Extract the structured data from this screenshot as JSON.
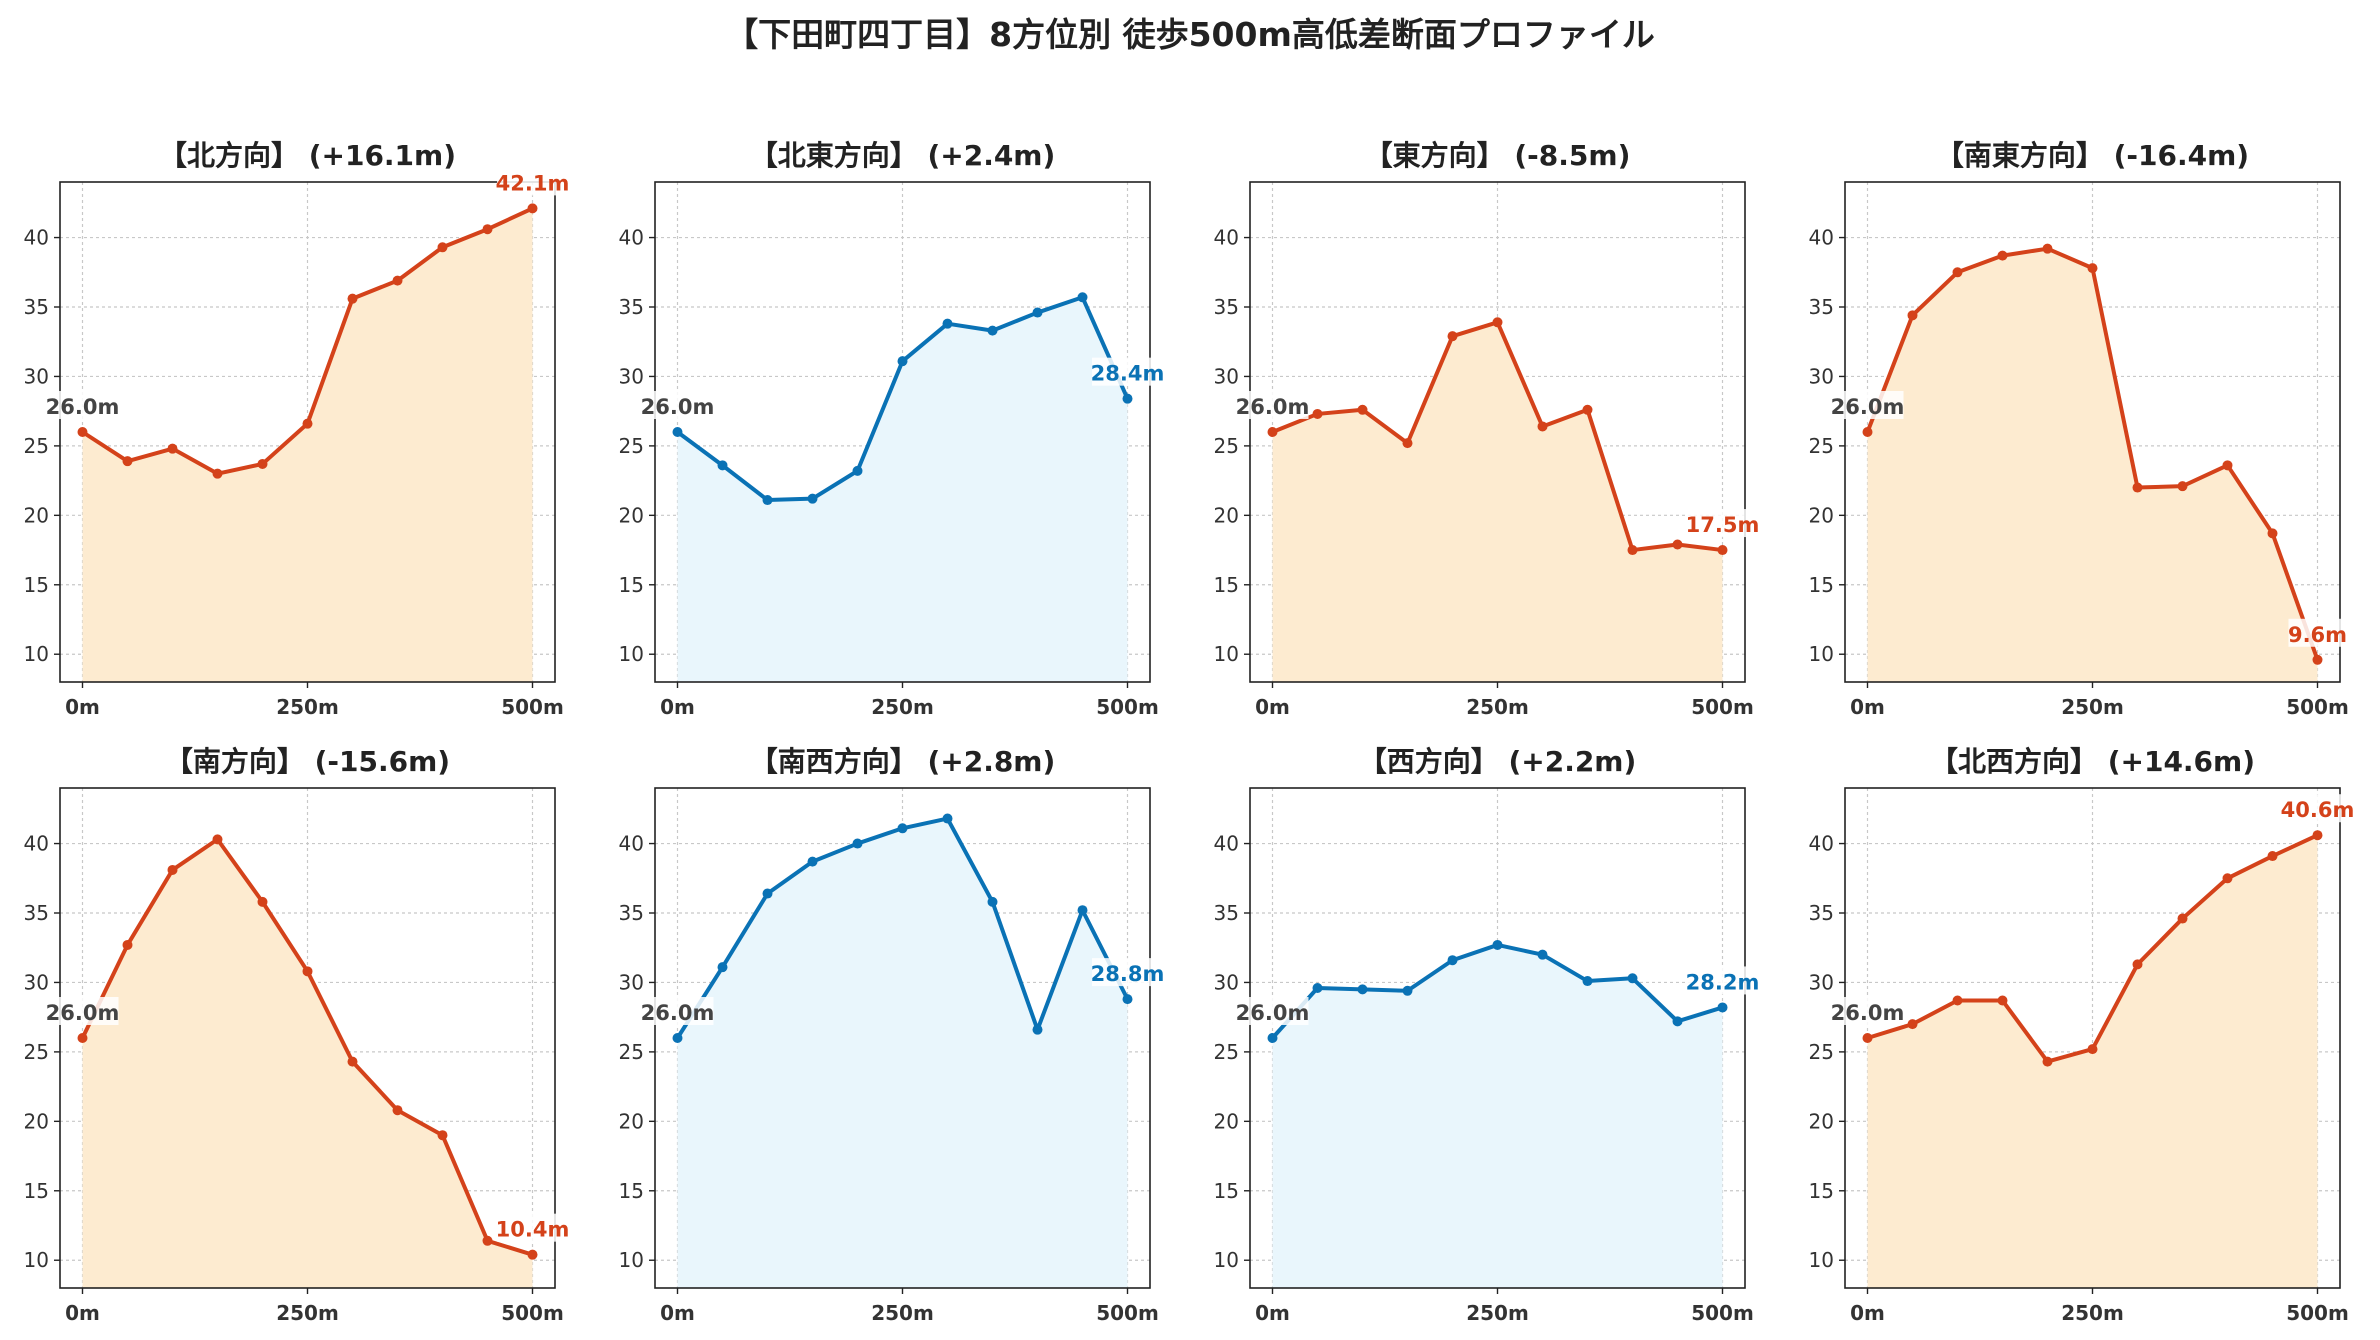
{
  "title": "【下田町四丁目】8方位別 徒歩500m高低差断面プロファイル",
  "colors": {
    "up": "#d4421a",
    "up_fill": "#fdebd0",
    "flat": "#0a72b5",
    "flat_fill": "#e9f6fc",
    "start_label": "#444444"
  },
  "chart_data": [
    {
      "type": "area",
      "title": "【北方向】 (+16.1m)",
      "trend": "up",
      "x": [
        0,
        50,
        100,
        150,
        200,
        250,
        300,
        350,
        400,
        450,
        500
      ],
      "y": [
        26.0,
        23.9,
        24.8,
        23.0,
        23.7,
        26.6,
        35.6,
        36.9,
        39.3,
        40.6,
        42.1
      ],
      "start_label": "26.0m",
      "end_label": "42.1m",
      "x_ticks": [
        "0m",
        "250m",
        "500m"
      ],
      "y_ticks": [
        10,
        15,
        20,
        25,
        30,
        35,
        40
      ],
      "ylim": [
        8,
        44
      ],
      "grid": true
    },
    {
      "type": "area",
      "title": "【北東方向】 (+2.4m)",
      "trend": "flat",
      "x": [
        0,
        50,
        100,
        150,
        200,
        250,
        300,
        350,
        400,
        450,
        500
      ],
      "y": [
        26.0,
        23.6,
        21.1,
        21.2,
        23.2,
        31.1,
        33.8,
        33.3,
        34.6,
        35.7,
        28.4
      ],
      "start_label": "26.0m",
      "end_label": "28.4m",
      "x_ticks": [
        "0m",
        "250m",
        "500m"
      ],
      "y_ticks": [
        10,
        15,
        20,
        25,
        30,
        35,
        40
      ],
      "ylim": [
        8,
        44
      ],
      "grid": true
    },
    {
      "type": "area",
      "title": "【東方向】 (-8.5m)",
      "trend": "up",
      "x": [
        0,
        50,
        100,
        150,
        200,
        250,
        300,
        350,
        400,
        450,
        500
      ],
      "y": [
        26.0,
        27.3,
        27.6,
        25.2,
        32.9,
        33.9,
        26.4,
        27.6,
        17.5,
        17.9,
        17.5
      ],
      "start_label": "26.0m",
      "end_label": "17.5m",
      "x_ticks": [
        "0m",
        "250m",
        "500m"
      ],
      "y_ticks": [
        10,
        15,
        20,
        25,
        30,
        35,
        40
      ],
      "ylim": [
        8,
        44
      ],
      "grid": true
    },
    {
      "type": "area",
      "title": "【南東方向】 (-16.4m)",
      "trend": "up",
      "x": [
        0,
        50,
        100,
        150,
        200,
        250,
        300,
        350,
        400,
        450,
        500
      ],
      "y": [
        26.0,
        34.4,
        37.5,
        38.7,
        39.2,
        37.8,
        22.0,
        22.1,
        23.6,
        18.7,
        9.6
      ],
      "start_label": "26.0m",
      "end_label": "9.6m",
      "x_ticks": [
        "0m",
        "250m",
        "500m"
      ],
      "y_ticks": [
        10,
        15,
        20,
        25,
        30,
        35,
        40
      ],
      "ylim": [
        8,
        44
      ],
      "grid": true
    },
    {
      "type": "area",
      "title": "【南方向】 (-15.6m)",
      "trend": "up",
      "x": [
        0,
        50,
        100,
        150,
        200,
        250,
        300,
        350,
        400,
        450,
        500
      ],
      "y": [
        26.0,
        32.7,
        38.1,
        40.3,
        35.8,
        30.8,
        24.3,
        20.8,
        19.0,
        11.4,
        10.4
      ],
      "start_label": "26.0m",
      "end_label": "10.4m",
      "x_ticks": [
        "0m",
        "250m",
        "500m"
      ],
      "y_ticks": [
        10,
        15,
        20,
        25,
        30,
        35,
        40
      ],
      "ylim": [
        8,
        44
      ],
      "grid": true
    },
    {
      "type": "area",
      "title": "【南西方向】 (+2.8m)",
      "trend": "flat",
      "x": [
        0,
        50,
        100,
        150,
        200,
        250,
        300,
        350,
        400,
        450,
        500
      ],
      "y": [
        26.0,
        31.1,
        36.4,
        38.7,
        40.0,
        41.1,
        41.8,
        35.8,
        26.6,
        35.2,
        28.8
      ],
      "start_label": "26.0m",
      "end_label": "28.8m",
      "x_ticks": [
        "0m",
        "250m",
        "500m"
      ],
      "y_ticks": [
        10,
        15,
        20,
        25,
        30,
        35,
        40
      ],
      "ylim": [
        8,
        44
      ],
      "grid": true
    },
    {
      "type": "area",
      "title": "【西方向】 (+2.2m)",
      "trend": "flat",
      "x": [
        0,
        50,
        100,
        150,
        200,
        250,
        300,
        350,
        400,
        450,
        500
      ],
      "y": [
        26.0,
        29.6,
        29.5,
        29.4,
        31.6,
        32.7,
        32.0,
        30.1,
        30.3,
        27.2,
        28.2
      ],
      "start_label": "26.0m",
      "end_label": "28.2m",
      "x_ticks": [
        "0m",
        "250m",
        "500m"
      ],
      "y_ticks": [
        10,
        15,
        20,
        25,
        30,
        35,
        40
      ],
      "ylim": [
        8,
        44
      ],
      "grid": true
    },
    {
      "type": "area",
      "title": "【北西方向】 (+14.6m)",
      "trend": "up",
      "x": [
        0,
        50,
        100,
        150,
        200,
        250,
        300,
        350,
        400,
        450,
        500
      ],
      "y": [
        26.0,
        27.0,
        28.7,
        28.7,
        24.3,
        25.2,
        31.3,
        34.6,
        37.5,
        39.1,
        40.6
      ],
      "start_label": "26.0m",
      "end_label": "40.6m",
      "x_ticks": [
        "0m",
        "250m",
        "500m"
      ],
      "y_ticks": [
        10,
        15,
        20,
        25,
        30,
        35,
        40
      ],
      "ylim": [
        8,
        44
      ],
      "grid": true
    }
  ]
}
